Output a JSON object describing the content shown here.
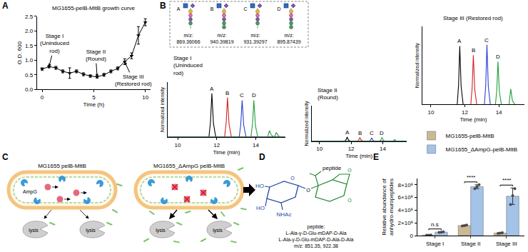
{
  "chart_data": [
    {
      "panel": "A",
      "type": "line",
      "title": "MG1655-pelB-MltB growth curve",
      "x_label": "Time (h)",
      "y_label": "O.D. 600",
      "x": [
        0,
        0.67,
        1.33,
        2,
        2.67,
        3.33,
        4,
        4.67,
        5.33,
        6,
        6.67,
        7.33,
        8,
        8.67,
        9.33,
        10
      ],
      "series": [
        {
          "color": "#000000",
          "marker": "triangle-down",
          "values": [
            0.7,
            0.78,
            0.74,
            0.62,
            0.56,
            0.62,
            0.52,
            0.46,
            0.43,
            0.5,
            0.62,
            0.72,
            0.95,
            1.15,
            1.85,
            2.3
          ],
          "errors": [
            0.04,
            0.04,
            0.05,
            0.05,
            0.18,
            0.05,
            0.05,
            0.04,
            0.04,
            0.05,
            0.05,
            0.05,
            0.1,
            0.1,
            0.3,
            0.12
          ]
        }
      ],
      "xlim": [
        -0.5,
        10.5
      ],
      "xticks": [
        0,
        5,
        10
      ],
      "ylim": [
        0,
        2.5
      ],
      "yticks": [
        {
          "value": 0,
          "label": "0.0"
        },
        0.5,
        {
          "value": 1,
          "label": "1.0"
        },
        1.5,
        {
          "value": 2,
          "label": "2.0"
        },
        2.5
      ],
      "grid": false,
      "annotations": [
        {
          "lines": [
            "Stage I",
            "(Uninduced",
            "rod)"
          ],
          "x": 0.67
        },
        {
          "lines": [
            "Stage II",
            "(Round)"
          ],
          "x": 5.33
        },
        {
          "lines": [
            "Stage III",
            "(Restored rod)"
          ],
          "x": 8
        }
      ]
    },
    {
      "type": "line",
      "title": [
        "Stage I",
        "(Uninduced",
        "rod)"
      ],
      "x_label": "Time (min)",
      "y_label": "Normalized intensity",
      "xlim": [
        9.5,
        15.5
      ],
      "xticks": [
        10,
        12,
        14
      ],
      "ylim": [
        0,
        1.2
      ],
      "tick_labels": "x",
      "grid": false,
      "series": [
        {
          "name": "A",
          "color": "#000000",
          "x": [
            9.5,
            11.6,
            11.68,
            11.75,
            11.83,
            11.95,
            15.5
          ],
          "values": [
            0,
            0,
            0.33,
            0.95,
            0.3,
            0,
            0
          ]
        },
        {
          "name": "B",
          "color": "#d62020",
          "x": [
            9.5,
            12.4,
            12.48,
            12.55,
            12.63,
            12.75,
            15.5
          ],
          "values": [
            0,
            0,
            0.3,
            0.86,
            0.28,
            0,
            0
          ]
        },
        {
          "name": "C",
          "color": "#2a3fd6",
          "x": [
            9.5,
            13.15,
            13.23,
            13.3,
            13.38,
            13.5,
            15.5
          ],
          "values": [
            0,
            0,
            0.28,
            0.8,
            0.26,
            0,
            0
          ]
        },
        {
          "name": "D",
          "color": "#1f9e3a",
          "x": [
            9.5,
            13.75,
            13.83,
            13.9,
            13.98,
            14.1,
            14.6,
            14.7,
            14.8,
            14.95,
            15.05,
            15.15,
            15.25,
            15.5
          ],
          "values": [
            0,
            0,
            0.28,
            0.8,
            0.25,
            0,
            0,
            0.14,
            0.04,
            0,
            0.1,
            0.03,
            0,
            0
          ]
        }
      ]
    },
    {
      "type": "line",
      "title": [
        "Stage II",
        "(Round)"
      ],
      "x_label": "Time (min)",
      "y_label": "Normalized intensity",
      "xlim": [
        9.5,
        15.5
      ],
      "xticks": [
        10,
        12,
        14
      ],
      "ylim": [
        0,
        1.2
      ],
      "tick_labels": "x",
      "grid": false,
      "series": [
        {
          "name": "A",
          "color": "#000000",
          "x": [
            9.5,
            11.6,
            11.68,
            11.75,
            11.83,
            11.95,
            15.5
          ],
          "values": [
            0,
            0,
            0.05,
            0.14,
            0.04,
            0,
            0
          ]
        },
        {
          "name": "B",
          "color": "#d62020",
          "x": [
            9.5,
            12.4,
            12.48,
            12.55,
            12.63,
            12.75,
            15.5
          ],
          "values": [
            0,
            0,
            0.04,
            0.12,
            0.04,
            0,
            0
          ]
        },
        {
          "name": "C",
          "color": "#2a3fd6",
          "x": [
            9.5,
            13.15,
            13.23,
            13.3,
            13.38,
            13.5,
            15.5
          ],
          "values": [
            0,
            0,
            0.04,
            0.11,
            0.03,
            0,
            0
          ]
        },
        {
          "name": "D",
          "color": "#1f9e3a",
          "x": [
            9.5,
            13.8,
            13.88,
            13.95,
            14.03,
            14.15,
            14.65,
            14.75,
            14.85,
            15.5
          ],
          "values": [
            0,
            0,
            0.04,
            0.12,
            0.03,
            0,
            0,
            0.05,
            0,
            0
          ]
        }
      ]
    },
    {
      "type": "line",
      "title": "Stage III (Restored rod)",
      "x_label": "Time (min)",
      "y_label": "Normalized intensity",
      "xlim": [
        9.5,
        15.5
      ],
      "xticks": [
        10,
        12,
        14
      ],
      "ylim": [
        0,
        1.2
      ],
      "tick_labels": "x",
      "grid": false,
      "series": [
        {
          "name": "A",
          "color": "#000000",
          "x": [
            9.5,
            11.55,
            11.63,
            11.7,
            11.78,
            11.9,
            15.5
          ],
          "values": [
            0,
            0,
            0.3,
            0.9,
            0.28,
            0,
            0
          ]
        },
        {
          "name": "B",
          "color": "#d62020",
          "x": [
            9.5,
            12.35,
            12.43,
            12.5,
            12.58,
            12.7,
            15.5
          ],
          "values": [
            0,
            0,
            0.26,
            0.76,
            0.24,
            0,
            0
          ]
        },
        {
          "name": "C",
          "color": "#2a3fd6",
          "x": [
            9.5,
            13.15,
            13.23,
            13.3,
            13.38,
            13.5,
            15.5
          ],
          "values": [
            0,
            0,
            0.3,
            0.92,
            0.28,
            0,
            0
          ]
        },
        {
          "name": "D",
          "color": "#1f9e3a",
          "x": [
            9.5,
            13.8,
            13.88,
            13.95,
            14.03,
            14.15,
            14.6,
            14.7,
            14.8,
            14.95,
            15.5
          ],
          "values": [
            0,
            0,
            0.22,
            0.66,
            0.2,
            0,
            0,
            0.24,
            0.06,
            0,
            0
          ]
        }
      ]
    },
    {
      "panel": "E",
      "type": "bar",
      "categories": [
        "Stage I",
        "Stage II",
        "Stage III"
      ],
      "y_label": [
        "Relative abundance of",
        "anhydro-muropeptides"
      ],
      "ylim": [
        0,
        900000000
      ],
      "yticks": [
        0,
        {
          "value": 200000000,
          "label": "2×10⁸"
        },
        {
          "value": 400000000,
          "label": "4×10⁸"
        },
        {
          "value": 600000000,
          "label": "6×10⁸"
        },
        {
          "value": 800000000,
          "label": "8×10⁸"
        }
      ],
      "legend": "top left",
      "grid": false,
      "series": [
        {
          "name": "MG1655-pelB-MltB",
          "color": "#cbb894",
          "values": [
            7000000,
            158000000,
            40000000
          ],
          "errors": [
            1500000,
            7000000,
            5000000
          ],
          "points": [
            [
              5500000,
              7000000,
              8500000
            ],
            [
              151000000,
              158000000,
              165000000
            ],
            [
              35000000,
              40000000,
              45000000
            ]
          ]
        },
        {
          "name": "MG1655_ΔAmpG-pelB-MltB",
          "color": "#a3c3e8",
          "values": [
            55000000,
            770000000,
            620000000
          ],
          "errors": [
            5000000,
            30000000,
            130000000
          ],
          "points": [
            [
              50000000,
              55000000,
              60000000
            ],
            [
              740000000,
              770000000,
              800000000
            ],
            [
              490000000,
              630000000,
              740000000
            ]
          ]
        }
      ],
      "annotations": [
        {
          "text": "n.s",
          "category": "Stage I"
        },
        {
          "text": "****",
          "category": "Stage II"
        },
        {
          "text": "****",
          "category": "Stage III"
        }
      ]
    }
  ],
  "diagrams": {
    "B_inset": {
      "panel": "B",
      "glycans": [
        {
          "label": "A",
          "mz_label": "m/z:",
          "mz": "869.36066"
        },
        {
          "label": "B",
          "mz_label": "m/z:",
          "mz": "940.39819"
        },
        {
          "label": "C",
          "mz_label": "m/z:",
          "mz": "931.39297"
        },
        {
          "label": "D",
          "mz_label": "m/z:",
          "mz": "895.87439"
        }
      ]
    },
    "C": {
      "panel": "C",
      "cells": [
        {
          "title": "MG1655 pelB-MltB",
          "transporter": "AmpG",
          "lysis": [
            "lysis",
            "lysis"
          ]
        },
        {
          "title": "MG1655_ΔAmpG pelB-MltB",
          "lysis": [
            "lysis",
            "lysis"
          ]
        }
      ]
    },
    "D": {
      "panel": "D",
      "peptide_group": "peptide",
      "hydroxyls": [
        "HO",
        "HO"
      ],
      "acetamido": "NHAc",
      "oxygens": [
        "O",
        "O",
        "O",
        "O"
      ],
      "caption": [
        "peptide:",
        "L-Ala-γ-D-Glu-mDAP-D-Ala",
        "L-Ala-γ-D-Glu-mDAP-D-Ala-D-Ala",
        "m/z: 851.35, 922.38"
      ]
    }
  }
}
